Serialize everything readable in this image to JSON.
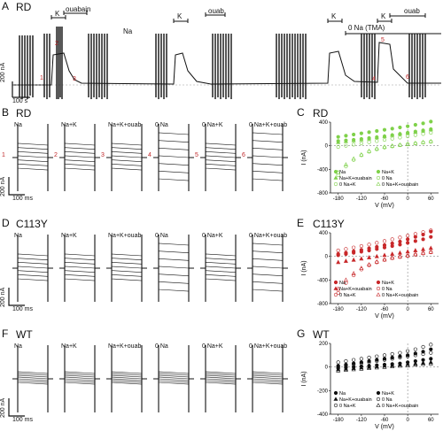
{
  "panel_A": {
    "letter": "A",
    "title": "RD",
    "bars": {
      "k1": "K",
      "ouabain": "ouabain",
      "na": "Na",
      "k2": "K",
      "ouab": "ouab",
      "k3": "K",
      "k4": "K",
      "ouab2": "ouab",
      "zero_na": "0 Na (TMA)"
    },
    "markers": [
      "1",
      "2",
      "3",
      "4",
      "5",
      "6"
    ],
    "scale_y": "200 nA",
    "scale_x": "100 s"
  },
  "row_B": {
    "letter": "B",
    "title": "RD",
    "conditions": [
      "Na",
      "Na+K",
      "Na+K+ouab",
      "0 Na",
      "0 Na+K",
      "0 Na+K+ouab"
    ],
    "markers": [
      "1",
      "2",
      "3",
      "4",
      "5",
      "6"
    ],
    "scale_y": "200 nA",
    "scale_x": "100 ms"
  },
  "row_D": {
    "letter": "D",
    "title": "C113Y",
    "conditions": [
      "Na",
      "Na+K",
      "Na+K+ouab",
      "0 Na",
      "0 Na+K",
      "0 Na+K+ouab"
    ],
    "scale_y": "200 nA",
    "scale_x": "100 ms"
  },
  "row_F": {
    "letter": "F",
    "title": "WT",
    "conditions": [
      "Na",
      "Na+K",
      "Na+K+ouab",
      "0 Na",
      "0 Na+K",
      "0 Na+K+ouab"
    ],
    "scale_y": "200 nA",
    "scale_x": "100 ms"
  },
  "chart_data": [
    {
      "type": "scatter",
      "letter": "C",
      "title": "RD",
      "xlabel": "V (mV)",
      "ylabel": "I (nA)",
      "xlim": [
        -200,
        80
      ],
      "ylim": [
        -800,
        400
      ],
      "xticks": [
        "-180",
        "-120",
        "-60",
        "0",
        "60"
      ],
      "yticks": [
        "400",
        "0",
        "-400",
        "-800"
      ],
      "color": "#7fd14a",
      "legend": [
        "Na",
        "Na+K",
        "Na+K+ouabain",
        "0 Na",
        "0 Na+K",
        "0 Na+K+ouabain"
      ],
      "series": [
        {
          "name": "Na",
          "x": [
            -180,
            -160,
            -140,
            -120,
            -100,
            -80,
            -60,
            -40,
            -20,
            0,
            20,
            40,
            60
          ],
          "y": [
            80,
            90,
            100,
            115,
            130,
            145,
            160,
            180,
            200,
            220,
            240,
            260,
            280
          ]
        },
        {
          "name": "Na+K",
          "x": [
            -180,
            -160,
            -140,
            -120,
            -100,
            -80,
            -60,
            -40,
            -20,
            0,
            20,
            40,
            60
          ],
          "y": [
            150,
            170,
            190,
            210,
            230,
            250,
            270,
            290,
            310,
            330,
            355,
            380,
            410
          ]
        },
        {
          "name": "Na+K+ouabain",
          "x": [
            -180,
            -160,
            -140,
            -120,
            -100,
            -80,
            -60,
            -40,
            -20,
            0,
            20,
            40,
            60
          ],
          "y": [
            60,
            75,
            90,
            105,
            120,
            140,
            160,
            180,
            200,
            215,
            235,
            255,
            275
          ]
        },
        {
          "name": "0 Na",
          "x": [
            -180,
            -160,
            -140,
            -120,
            -100,
            -80,
            -60,
            -40,
            -20,
            0,
            20,
            40,
            60
          ],
          "y": [
            -500,
            -350,
            -240,
            -160,
            -100,
            -60,
            -30,
            -10,
            10,
            25,
            40,
            55,
            70
          ]
        },
        {
          "name": "0 Na+K",
          "x": [
            -180,
            -160,
            -140,
            -120,
            -100,
            -80,
            -60,
            -40,
            -20,
            0,
            20,
            40,
            60
          ],
          "y": [
            -20,
            0,
            20,
            40,
            60,
            80,
            100,
            120,
            140,
            160,
            180,
            200,
            220
          ]
        },
        {
          "name": "0 Na+K+ouabain",
          "x": [
            -180,
            -160,
            -140,
            -120,
            -100,
            -80,
            -60,
            -40,
            -20,
            0,
            20,
            40,
            60
          ],
          "y": [
            -450,
            -320,
            -220,
            -150,
            -90,
            -50,
            -20,
            0,
            15,
            30,
            45,
            60,
            75
          ]
        }
      ]
    },
    {
      "type": "scatter",
      "letter": "E",
      "title": "C113Y",
      "xlabel": "V (mV)",
      "ylabel": "I (nA)",
      "xlim": [
        -200,
        80
      ],
      "ylim": [
        -800,
        400
      ],
      "xticks": [
        "-180",
        "-120",
        "-60",
        "0",
        "60"
      ],
      "yticks": [
        "400",
        "0",
        "-400",
        "-800"
      ],
      "color": "#c8282a",
      "legend": [
        "Na",
        "Na+K",
        "Na+K+ouabain",
        "0 Na",
        "0 Na+K",
        "0 Na+K+ouabain"
      ],
      "series": [
        {
          "name": "Na",
          "x": [
            -180,
            -160,
            -140,
            -120,
            -100,
            -80,
            -60,
            -40,
            -20,
            0,
            20,
            40,
            60
          ],
          "y": [
            20,
            40,
            60,
            80,
            100,
            125,
            150,
            175,
            200,
            230,
            260,
            290,
            330
          ]
        },
        {
          "name": "Na+K",
          "x": [
            -180,
            -160,
            -140,
            -120,
            -100,
            -80,
            -60,
            -40,
            -20,
            0,
            20,
            40,
            60
          ],
          "y": [
            40,
            60,
            85,
            110,
            135,
            160,
            190,
            220,
            250,
            290,
            330,
            370,
            420
          ]
        },
        {
          "name": "Na+K+ouabain",
          "x": [
            -180,
            -160,
            -140,
            -120,
            -100,
            -80,
            -60,
            -40,
            -20,
            0,
            20,
            40,
            60
          ],
          "y": [
            -100,
            -80,
            -60,
            -40,
            -20,
            0,
            20,
            40,
            60,
            80,
            100,
            120,
            140
          ]
        },
        {
          "name": "0 Na",
          "x": [
            -180,
            -160,
            -140,
            -120,
            -100,
            -80,
            -60,
            -40,
            -20,
            0,
            20,
            40,
            60
          ],
          "y": [
            -620,
            -450,
            -320,
            -220,
            -150,
            -100,
            -60,
            -30,
            -10,
            10,
            30,
            50,
            70
          ]
        },
        {
          "name": "0 Na+K",
          "x": [
            -180,
            -160,
            -140,
            -120,
            -100,
            -80,
            -60,
            -40,
            -20,
            0,
            20,
            40,
            60
          ],
          "y": [
            100,
            125,
            150,
            175,
            200,
            230,
            260,
            290,
            320,
            350,
            380,
            410,
            440
          ]
        },
        {
          "name": "0 Na+K+ouabain",
          "x": [
            -180,
            -160,
            -140,
            -120,
            -100,
            -80,
            -60,
            -40,
            -20,
            0,
            20,
            40,
            60
          ],
          "y": [
            -550,
            -400,
            -290,
            -200,
            -140,
            -90,
            -55,
            -25,
            -5,
            15,
            35,
            55,
            75
          ]
        }
      ]
    },
    {
      "type": "scatter",
      "letter": "G",
      "title": "WT",
      "xlabel": "V (mV)",
      "ylabel": "I (nA)",
      "xlim": [
        -200,
        80
      ],
      "ylim": [
        -400,
        200
      ],
      "xticks": [
        "-180",
        "-120",
        "-60",
        "0",
        "60"
      ],
      "yticks": [
        "200",
        "0",
        "-200",
        "-400"
      ],
      "color": "#111111",
      "legend": [
        "Na",
        "Na+K",
        "Na+K+ouabain",
        "0 Na",
        "0 Na+K",
        "0 Na+K+ouabain"
      ],
      "series": [
        {
          "name": "Na",
          "x": [
            -180,
            -160,
            -140,
            -120,
            -100,
            -80,
            -60,
            -40,
            -20,
            0,
            20,
            40,
            60
          ],
          "y": [
            -10,
            -5,
            0,
            5,
            10,
            15,
            20,
            25,
            30,
            40,
            50,
            60,
            70
          ]
        },
        {
          "name": "Na+K",
          "x": [
            -180,
            -160,
            -140,
            -120,
            -100,
            -80,
            -60,
            -40,
            -20,
            0,
            20,
            40,
            60
          ],
          "y": [
            10,
            20,
            30,
            40,
            50,
            60,
            70,
            80,
            90,
            100,
            115,
            130,
            150
          ]
        },
        {
          "name": "Na+K+ouabain",
          "x": [
            -180,
            -160,
            -140,
            -120,
            -100,
            -80,
            -60,
            -40,
            -20,
            0,
            20,
            40,
            60
          ],
          "y": [
            -20,
            -15,
            -10,
            -5,
            0,
            5,
            10,
            15,
            20,
            25,
            30,
            35,
            40
          ]
        },
        {
          "name": "0 Na",
          "x": [
            -180,
            -160,
            -140,
            -120,
            -100,
            -80,
            -60,
            -40,
            -20,
            0,
            20,
            40,
            60
          ],
          "y": [
            0,
            10,
            20,
            30,
            40,
            50,
            60,
            70,
            80,
            90,
            100,
            110,
            120
          ]
        },
        {
          "name": "0 Na+K",
          "x": [
            -180,
            -160,
            -140,
            -120,
            -100,
            -80,
            -60,
            -40,
            -20,
            0,
            20,
            40,
            60
          ],
          "y": [
            40,
            50,
            60,
            70,
            80,
            90,
            100,
            110,
            120,
            135,
            150,
            170,
            190
          ]
        },
        {
          "name": "0 Na+K+ouabain",
          "x": [
            -180,
            -160,
            -140,
            -120,
            -100,
            -80,
            -60,
            -40,
            -20,
            0,
            20,
            40,
            60
          ],
          "y": [
            -30,
            -25,
            -20,
            -15,
            -10,
            -5,
            0,
            5,
            10,
            15,
            20,
            25,
            30
          ]
        }
      ]
    }
  ]
}
